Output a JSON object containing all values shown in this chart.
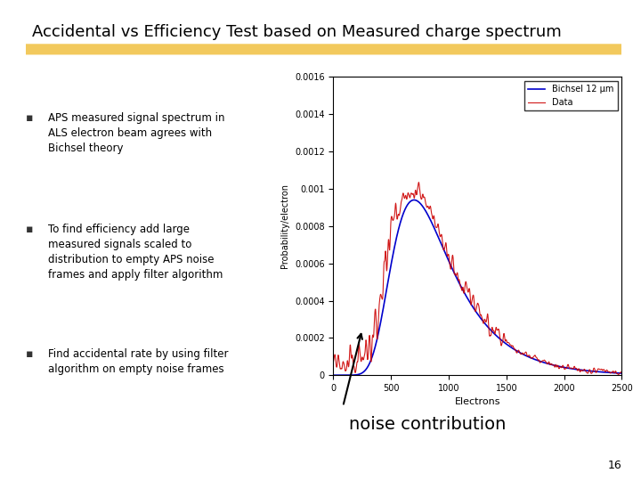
{
  "title": "Accidental vs Efficiency Test based on Measured charge spectrum",
  "background_color": "#ffffff",
  "highlight_color": "#f0c040",
  "bullet_points": [
    "APS measured signal spectrum in\nALS electron beam agrees with\nBichsel theory",
    "To find efficiency add large\nmeasured signals scaled to\ndistribution to empty APS noise\nframes and apply filter algorithm",
    "Find accidental rate by using filter\nalgorithm on empty noise frames"
  ],
  "annotation_text": "noise contribution",
  "page_number": "16",
  "legend_labels": [
    "Bichsel 12 μm",
    "Data"
  ],
  "legend_colors": [
    "#0000cc",
    "#cc0000"
  ],
  "xlabel": "Electrons",
  "ylabel": "Probability/electron",
  "xlim": [
    0,
    2500
  ],
  "ylim": [
    0,
    0.0016
  ]
}
